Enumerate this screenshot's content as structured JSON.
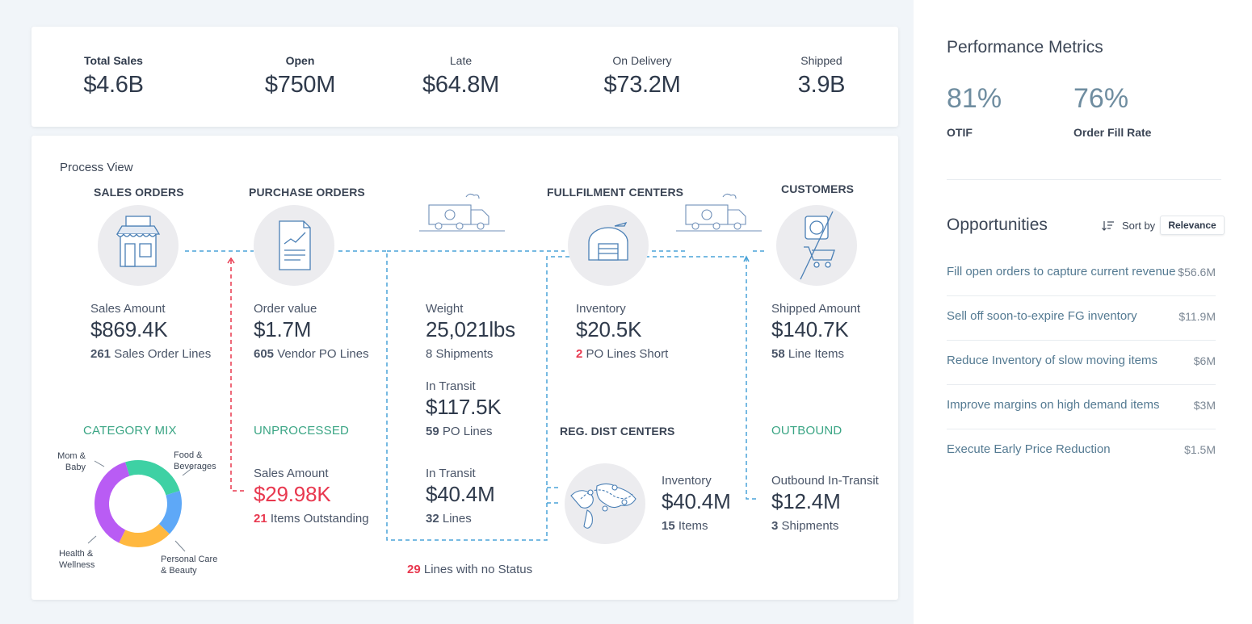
{
  "kpis": [
    {
      "label": "Total Sales",
      "value": "$4.6B",
      "emphasis": true
    },
    {
      "label": "Open",
      "value": "$750M",
      "emphasis": true
    },
    {
      "label": "Late",
      "value": "$64.8M",
      "emphasis": false
    },
    {
      "label": "On Delivery",
      "value": "$73.2M",
      "emphasis": false
    },
    {
      "label": "Shipped",
      "value": "3.9B",
      "emphasis": false
    }
  ],
  "process": {
    "title": "Process View",
    "sales_orders": {
      "heading": "SALES ORDERS",
      "label": "Sales Amount",
      "value": "$869.4K",
      "sub_count": "261",
      "sub_text": " Sales Order Lines",
      "icon": "storefront-icon"
    },
    "purchase_orders": {
      "heading": "PURCHASE ORDERS",
      "label": "Order value",
      "value": "$1.7M",
      "sub_count": "605",
      "sub_text": " Vendor PO Lines",
      "icon": "document-chart-icon"
    },
    "shipping": {
      "label": "Weight",
      "value": "25,021lbs",
      "sub_text": "8 Shipments",
      "icon": "truck-icon"
    },
    "in_transit_1": {
      "label": "In Transit",
      "value": "$117.5K",
      "sub_count": "59",
      "sub_text": " PO Lines"
    },
    "in_transit_2": {
      "label": "In Transit",
      "value": "$40.4M",
      "sub_count": "32",
      "sub_text": " Lines"
    },
    "fulfilment": {
      "heading": "FULLFILMENT CENTERS",
      "label": "Inventory",
      "value": "$20.5K",
      "sub_count": "2",
      "sub_text": " PO Lines Short",
      "icon": "warehouse-icon"
    },
    "customers": {
      "heading": "CUSTOMERS",
      "label": "Shipped Amount",
      "value": "$140.7K",
      "sub_count": "58",
      "sub_text": " Line Items",
      "icon": "shopping-cart-icon"
    },
    "unprocessed": {
      "heading": "UNPROCESSED",
      "label": "Sales Amount",
      "value": "$29.98K",
      "sub_count": "21",
      "sub_text": " Items Outstanding"
    },
    "reg_dist": {
      "heading": "REG. DIST CENTERS",
      "label": "Inventory",
      "value": "$40.4M",
      "sub_count": "15",
      "sub_text": " Items",
      "icon": "world-map-icon"
    },
    "outbound": {
      "heading": "OUTBOUND",
      "label": "Outbound In-Transit",
      "value": "$12.4M",
      "sub_count": "3",
      "sub_text": " Shipments"
    },
    "no_status": {
      "count": "29",
      "text": " Lines with no Status"
    },
    "category_mix": {
      "heading": "CATEGORY MIX",
      "labels": {
        "mom_baby": [
          "Mom &",
          "Baby"
        ],
        "food": [
          "Food &",
          "Beverages"
        ],
        "personal": [
          "Personal Care",
          "& Beauty"
        ],
        "health": [
          "Health &",
          "Wellness"
        ]
      }
    }
  },
  "chart_data": {
    "type": "pie",
    "title": "CATEGORY MIX",
    "categories": [
      "Mom & Baby",
      "Food & Beverages",
      "Personal Care & Beauty",
      "Health & Wellness"
    ],
    "values": [
      25,
      17,
      20,
      38
    ],
    "colors": [
      "#3ed1a4",
      "#5ea8f7",
      "#ffb83f",
      "#b95cf4"
    ]
  },
  "performance": {
    "title": "Performance Metrics",
    "metrics": [
      {
        "value": "81%",
        "label": "OTIF"
      },
      {
        "value": "76%",
        "label": "Order Fill Rate"
      }
    ]
  },
  "opportunities": {
    "title": "Opportunities",
    "sort_label": "Sort by",
    "sort_value": "Relevance",
    "items": [
      {
        "label": "Fill open orders to capture current revenue",
        "amount": "$56.6M"
      },
      {
        "label": "Sell off soon-to-expire FG inventory",
        "amount": "$11.9M"
      },
      {
        "label": "Reduce Inventory of slow moving items",
        "amount": "$6M"
      },
      {
        "label": "Improve margins on high demand items",
        "amount": "$3M"
      },
      {
        "label": "Execute Early Price Reduction",
        "amount": "$1.5M"
      }
    ]
  },
  "colors": {
    "accent_red": "#e8384f",
    "accent_green": "#3aa584",
    "connector_blue": "#4aa3d8",
    "link": "#547a92"
  }
}
